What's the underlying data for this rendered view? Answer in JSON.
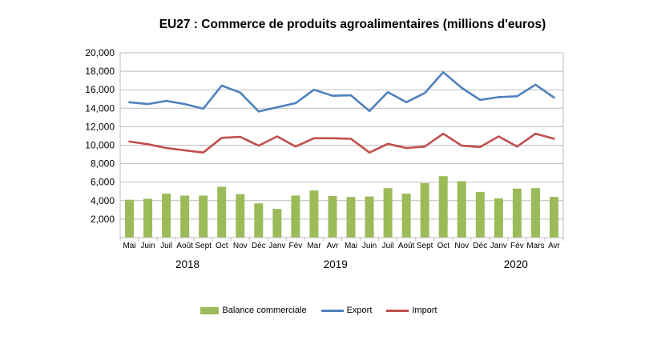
{
  "title": "EU27 : Commerce de produits agroalimentaires (millions d'euros)",
  "chart_data": {
    "type": "combo",
    "categories": [
      "Mai",
      "Juin",
      "Juil",
      "Août",
      "Sept",
      "Oct",
      "Nov",
      "Déc",
      "Janv",
      "Fév",
      "Mar",
      "Avr",
      "Mai",
      "Juin",
      "Juil",
      "Août",
      "Sept",
      "Oct",
      "Nov",
      "Déc",
      "Janv",
      "Fév",
      "Mars",
      "Avr"
    ],
    "year_labels": [
      "2018",
      "2019",
      "2020"
    ],
    "series": [
      {
        "name": "Balance commerciale",
        "type": "bar",
        "color": "#9BBB59",
        "values": [
          4100,
          4200,
          4750,
          4550,
          4550,
          5500,
          4700,
          3700,
          3100,
          4550,
          5100,
          4500,
          4400,
          4450,
          5350,
          4750,
          5900,
          6650,
          6100,
          4950,
          4250,
          5300,
          5350,
          4400
        ]
      },
      {
        "name": "Export",
        "type": "line",
        "color": "#4F81BD",
        "values": [
          14650,
          14450,
          14800,
          14450,
          13950,
          16450,
          15700,
          13650,
          14100,
          14550,
          16000,
          15350,
          15400,
          13700,
          15750,
          14650,
          15650,
          17900,
          16200,
          14900,
          15200,
          15300,
          16550,
          15150
        ]
      },
      {
        "name": "Import",
        "type": "line",
        "color": "#C0504D",
        "values": [
          10400,
          10100,
          9700,
          9450,
          9200,
          10800,
          10900,
          9950,
          10950,
          9850,
          10750,
          10750,
          10700,
          9200,
          10150,
          9700,
          9850,
          11250,
          9950,
          9800,
          10950,
          9850,
          11250,
          10700
        ]
      }
    ],
    "ylim": [
      0,
      20000
    ],
    "ytick_step": 2000,
    "ytick_labels": [
      "2,000",
      "4,000",
      "6,000",
      "8,000",
      "10,000",
      "12,000",
      "14,000",
      "16,000",
      "18,000",
      "20,000"
    ],
    "grid": true,
    "legend_position": "bottom",
    "gridline_color": "#BDBDBD",
    "axis_text_color": "#000000"
  }
}
